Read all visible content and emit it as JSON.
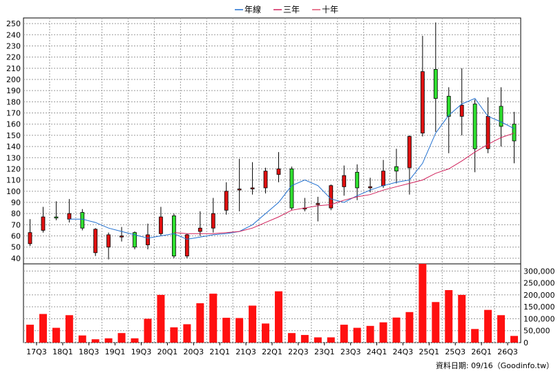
{
  "chart_data": {
    "type": "candlestick",
    "legend": {
      "placement": "top-center",
      "items": [
        {
          "name": "年線",
          "color": "#1f6fd0"
        },
        {
          "name": "三年",
          "color": "#d0205a"
        },
        {
          "name": "十年",
          "color": "#e05070"
        }
      ]
    },
    "price_axis": {
      "ylim": [
        35,
        255
      ],
      "ticks": [
        40,
        50,
        60,
        70,
        80,
        90,
        100,
        110,
        120,
        130,
        140,
        150,
        160,
        170,
        180,
        190,
        200,
        210,
        220,
        230,
        240,
        250
      ]
    },
    "volume_axis": {
      "ylim": [
        0,
        330000
      ],
      "ticks": [
        0,
        50000,
        100000,
        150000,
        200000,
        250000,
        300000
      ],
      "tick_labels": [
        "0",
        "50,000",
        "100,000",
        "150,000",
        "200,000",
        "250,000",
        "300,000"
      ]
    },
    "x_labels": [
      "17Q3",
      "18Q1",
      "18Q3",
      "19Q1",
      "19Q3",
      "20Q1",
      "20Q3",
      "21Q1",
      "21Q3",
      "22Q1",
      "22Q3",
      "23Q1",
      "23Q3",
      "24Q1",
      "24Q3",
      "25Q1",
      "25Q3",
      "26Q1",
      "26Q3"
    ],
    "candles": [
      {
        "o": 53,
        "c": 63,
        "h": 75,
        "l": 51
      },
      {
        "o": 65,
        "c": 77,
        "h": 86,
        "l": 63
      },
      {
        "o": 77,
        "c": 76,
        "h": 91,
        "l": 74
      },
      {
        "o": 75,
        "c": 80,
        "h": 93,
        "l": 72
      },
      {
        "o": 81,
        "c": 67,
        "h": 84,
        "l": 65
      },
      {
        "o": 45,
        "c": 66,
        "h": 67,
        "l": 42
      },
      {
        "o": 50,
        "c": 61,
        "h": 63,
        "l": 39
      },
      {
        "o": 59,
        "c": 60,
        "h": 68,
        "l": 55
      },
      {
        "o": 63,
        "c": 50,
        "h": 64,
        "l": 48
      },
      {
        "o": 52,
        "c": 61,
        "h": 71,
        "l": 48
      },
      {
        "o": 62,
        "c": 77,
        "h": 86,
        "l": 60
      },
      {
        "o": 78,
        "c": 42,
        "h": 80,
        "l": 40
      },
      {
        "o": 42,
        "c": 61,
        "h": 62,
        "l": 40
      },
      {
        "o": 64,
        "c": 67,
        "h": 82,
        "l": 60
      },
      {
        "o": 67,
        "c": 80,
        "h": 94,
        "l": 63
      },
      {
        "o": 83,
        "c": 100,
        "h": 108,
        "l": 79
      },
      {
        "o": 102,
        "c": 102,
        "h": 129,
        "l": 82
      },
      {
        "o": 102,
        "c": 103,
        "h": 126,
        "l": 97
      },
      {
        "o": 103,
        "c": 118,
        "h": 121,
        "l": 98
      },
      {
        "o": 115,
        "c": 120,
        "h": 135,
        "l": 108
      },
      {
        "o": 120,
        "c": 85,
        "h": 122,
        "l": 83
      },
      {
        "o": 85,
        "c": 85,
        "h": 94,
        "l": 82
      },
      {
        "o": 88,
        "c": 89,
        "h": 95,
        "l": 73
      },
      {
        "o": 85,
        "c": 105,
        "h": 106,
        "l": 83
      },
      {
        "o": 104,
        "c": 114,
        "h": 123,
        "l": 96
      },
      {
        "o": 117,
        "c": 103,
        "h": 124,
        "l": 92
      },
      {
        "o": 103,
        "c": 104,
        "h": 112,
        "l": 99
      },
      {
        "o": 105,
        "c": 118,
        "h": 128,
        "l": 103
      },
      {
        "o": 122,
        "c": 118,
        "h": 138,
        "l": 107
      },
      {
        "o": 121,
        "c": 149,
        "h": 150,
        "l": 97
      },
      {
        "o": 152,
        "c": 207,
        "h": 239,
        "l": 149
      },
      {
        "o": 209,
        "c": 183,
        "h": 251,
        "l": 153
      },
      {
        "o": 185,
        "c": 167,
        "h": 193,
        "l": 134
      },
      {
        "o": 167,
        "c": 177,
        "h": 210,
        "l": 150
      },
      {
        "o": 178,
        "c": 138,
        "h": 182,
        "l": 117
      },
      {
        "o": 138,
        "c": 167,
        "h": 184,
        "l": 134
      },
      {
        "o": 176,
        "c": 158,
        "h": 193,
        "l": 140
      },
      {
        "o": 160,
        "c": 145,
        "h": 171,
        "l": 125
      }
    ],
    "lines": [
      {
        "name": "年線",
        "color": "#1f6fd0",
        "values": [
          null,
          null,
          null,
          75,
          75,
          72,
          67,
          64,
          61,
          58,
          60,
          62,
          57,
          59,
          61,
          62,
          64,
          70,
          80,
          90,
          105,
          110,
          105,
          93,
          90,
          96,
          101,
          105,
          108,
          110,
          125,
          152,
          168,
          178,
          183,
          167,
          162,
          156
        ]
      },
      {
        "name": "三年",
        "color": "#d0205a",
        "values": [
          null,
          null,
          null,
          null,
          null,
          null,
          null,
          null,
          null,
          null,
          null,
          63,
          62,
          62,
          62,
          63,
          64,
          67,
          72,
          77,
          83,
          85,
          87,
          88,
          92,
          95,
          97,
          101,
          104,
          107,
          110,
          116,
          120,
          127,
          135,
          142,
          148,
          152
        ]
      }
    ],
    "volumes": [
      75000,
      120000,
      62000,
      115000,
      30000,
      14000,
      18000,
      40000,
      18000,
      100000,
      200000,
      64000,
      77000,
      165000,
      205000,
      104000,
      103000,
      155000,
      80000,
      215000,
      40000,
      32000,
      22000,
      22000,
      75000,
      62000,
      70000,
      85000,
      105000,
      128000,
      330000,
      170000,
      220000,
      200000,
      57000,
      137000,
      115000,
      28000
    ],
    "footer": "資料日期: 09/16（Goodinfo.tw）"
  }
}
